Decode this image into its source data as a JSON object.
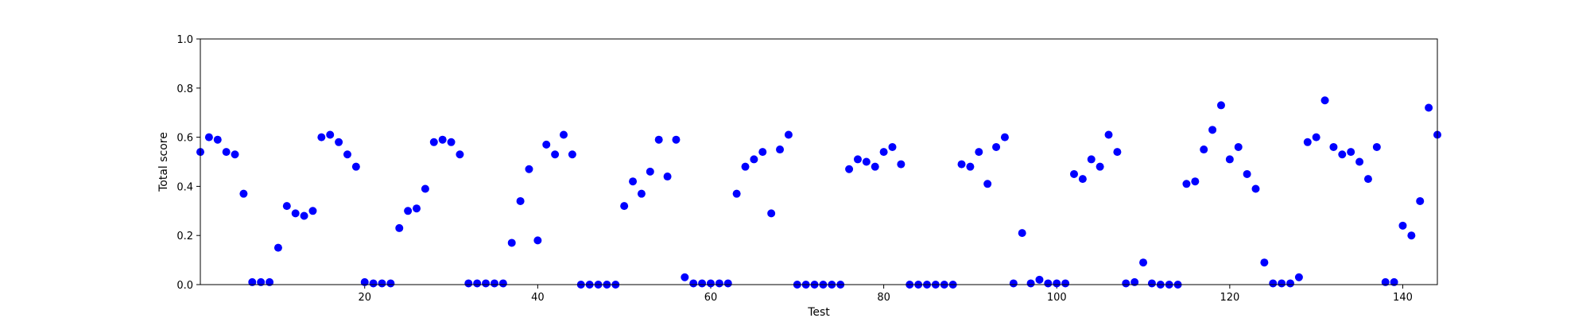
{
  "chart_data": {
    "type": "scatter",
    "xlabel": "Test",
    "ylabel": "Total score",
    "xlim": [
      1,
      144
    ],
    "ylim": [
      0.0,
      1.0
    ],
    "xticks": [
      20,
      40,
      60,
      80,
      100,
      120,
      140
    ],
    "yticks": [
      0.0,
      0.2,
      0.4,
      0.6,
      0.8,
      1.0
    ],
    "grid": false,
    "marker_color": "#0000ff",
    "points": [
      [
        1,
        0.54
      ],
      [
        2,
        0.6
      ],
      [
        3,
        0.59
      ],
      [
        4,
        0.54
      ],
      [
        5,
        0.53
      ],
      [
        6,
        0.37
      ],
      [
        7,
        0.01
      ],
      [
        8,
        0.01
      ],
      [
        9,
        0.01
      ],
      [
        10,
        0.15
      ],
      [
        11,
        0.32
      ],
      [
        12,
        0.29
      ],
      [
        13,
        0.28
      ],
      [
        14,
        0.3
      ],
      [
        15,
        0.6
      ],
      [
        16,
        0.61
      ],
      [
        17,
        0.58
      ],
      [
        18,
        0.53
      ],
      [
        19,
        0.48
      ],
      [
        20,
        0.01
      ],
      [
        21,
        0.005
      ],
      [
        22,
        0.005
      ],
      [
        23,
        0.005
      ],
      [
        24,
        0.23
      ],
      [
        25,
        0.3
      ],
      [
        26,
        0.31
      ],
      [
        27,
        0.39
      ],
      [
        28,
        0.58
      ],
      [
        29,
        0.59
      ],
      [
        30,
        0.58
      ],
      [
        31,
        0.53
      ],
      [
        32,
        0.005
      ],
      [
        33,
        0.005
      ],
      [
        34,
        0.005
      ],
      [
        35,
        0.005
      ],
      [
        36,
        0.005
      ],
      [
        37,
        0.17
      ],
      [
        38,
        0.34
      ],
      [
        39,
        0.47
      ],
      [
        40,
        0.18
      ],
      [
        41,
        0.57
      ],
      [
        42,
        0.53
      ],
      [
        43,
        0.61
      ],
      [
        44,
        0.53
      ],
      [
        45,
        0.0
      ],
      [
        46,
        0.0
      ],
      [
        47,
        0.0
      ],
      [
        48,
        0.0
      ],
      [
        49,
        0.0
      ],
      [
        50,
        0.32
      ],
      [
        51,
        0.42
      ],
      [
        52,
        0.37
      ],
      [
        53,
        0.46
      ],
      [
        54,
        0.59
      ],
      [
        55,
        0.44
      ],
      [
        56,
        0.59
      ],
      [
        57,
        0.03
      ],
      [
        58,
        0.005
      ],
      [
        59,
        0.005
      ],
      [
        60,
        0.005
      ],
      [
        61,
        0.005
      ],
      [
        62,
        0.005
      ],
      [
        63,
        0.37
      ],
      [
        64,
        0.48
      ],
      [
        65,
        0.51
      ],
      [
        66,
        0.54
      ],
      [
        67,
        0.29
      ],
      [
        68,
        0.55
      ],
      [
        69,
        0.61
      ],
      [
        70,
        0.0
      ],
      [
        71,
        0.0
      ],
      [
        72,
        0.0
      ],
      [
        73,
        0.0
      ],
      [
        74,
        0.0
      ],
      [
        75,
        0.0
      ],
      [
        76,
        0.47
      ],
      [
        77,
        0.51
      ],
      [
        78,
        0.5
      ],
      [
        79,
        0.48
      ],
      [
        80,
        0.54
      ],
      [
        81,
        0.56
      ],
      [
        82,
        0.49
      ],
      [
        83,
        0.0
      ],
      [
        84,
        0.0
      ],
      [
        85,
        0.0
      ],
      [
        86,
        0.0
      ],
      [
        87,
        0.0
      ],
      [
        88,
        0.0
      ],
      [
        89,
        0.49
      ],
      [
        90,
        0.48
      ],
      [
        91,
        0.54
      ],
      [
        92,
        0.41
      ],
      [
        93,
        0.56
      ],
      [
        94,
        0.6
      ],
      [
        95,
        0.005
      ],
      [
        96,
        0.21
      ],
      [
        97,
        0.005
      ],
      [
        98,
        0.02
      ],
      [
        99,
        0.005
      ],
      [
        100,
        0.005
      ],
      [
        101,
        0.005
      ],
      [
        102,
        0.45
      ],
      [
        103,
        0.43
      ],
      [
        104,
        0.51
      ],
      [
        105,
        0.48
      ],
      [
        106,
        0.61
      ],
      [
        107,
        0.54
      ],
      [
        108,
        0.005
      ],
      [
        109,
        0.01
      ],
      [
        110,
        0.09
      ],
      [
        111,
        0.005
      ],
      [
        112,
        0.0
      ],
      [
        113,
        0.0
      ],
      [
        114,
        0.0
      ],
      [
        115,
        0.41
      ],
      [
        116,
        0.42
      ],
      [
        117,
        0.55
      ],
      [
        118,
        0.63
      ],
      [
        119,
        0.73
      ],
      [
        120,
        0.51
      ],
      [
        121,
        0.56
      ],
      [
        122,
        0.45
      ],
      [
        123,
        0.39
      ],
      [
        124,
        0.09
      ],
      [
        125,
        0.005
      ],
      [
        126,
        0.005
      ],
      [
        127,
        0.005
      ],
      [
        128,
        0.03
      ],
      [
        129,
        0.58
      ],
      [
        130,
        0.6
      ],
      [
        131,
        0.75
      ],
      [
        132,
        0.56
      ],
      [
        133,
        0.53
      ],
      [
        134,
        0.54
      ],
      [
        135,
        0.5
      ],
      [
        136,
        0.43
      ],
      [
        137,
        0.56
      ],
      [
        138,
        0.01
      ],
      [
        139,
        0.01
      ],
      [
        140,
        0.24
      ],
      [
        141,
        0.2
      ],
      [
        142,
        0.34
      ],
      [
        143,
        0.72
      ],
      [
        144,
        0.61
      ]
    ]
  }
}
